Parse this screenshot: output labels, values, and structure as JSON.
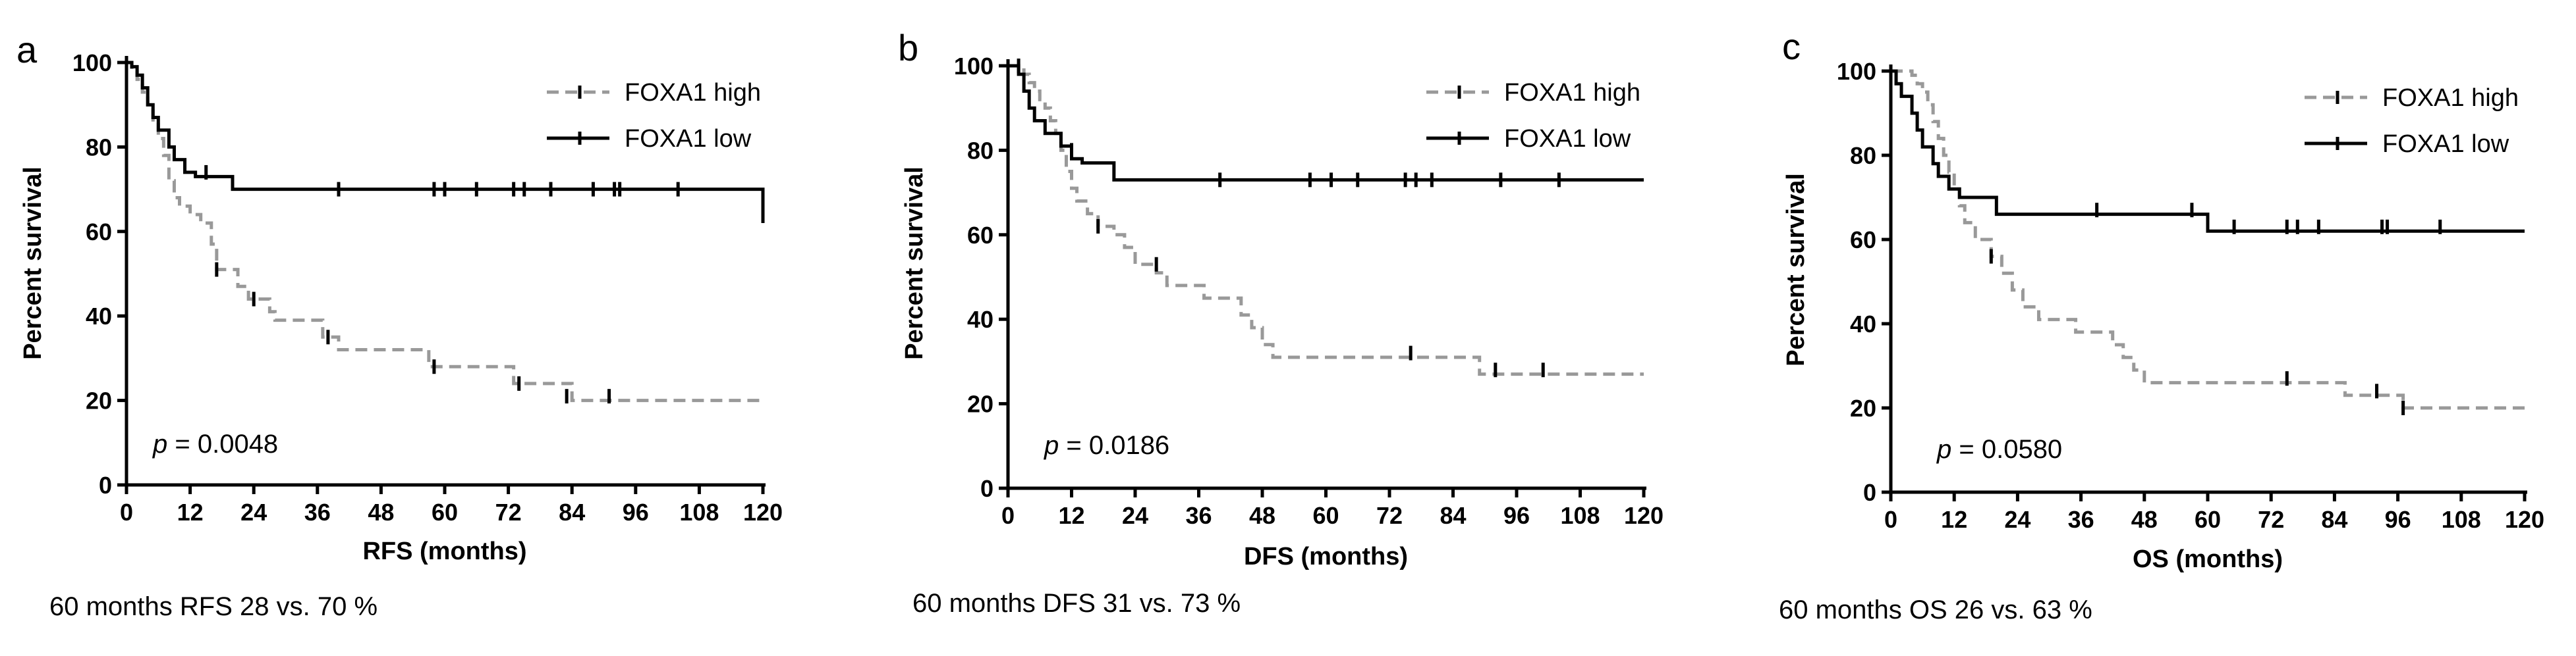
{
  "chart_data": [
    {
      "type": "line",
      "panel_letter": "a",
      "title": "",
      "xlabel": "RFS (months)",
      "ylabel": "Percent survival",
      "xlim": [
        0,
        120
      ],
      "ylim": [
        0,
        100
      ],
      "xticks": [
        "0",
        "12",
        "24",
        "36",
        "48",
        "60",
        "72",
        "84",
        "96",
        "108",
        "120"
      ],
      "yticks": [
        "0",
        "20",
        "40",
        "60",
        "80",
        "100"
      ],
      "pvalue_prefix": "p",
      "pvalue_text": " = 0.0048",
      "caption": "60 months RFS 28 vs. 70 %",
      "series": [
        {
          "name": "FOXA1 high",
          "style": "dashed",
          "color": "#999999",
          "points": [
            [
              0,
              100
            ],
            [
              1,
              98
            ],
            [
              2,
              96
            ],
            [
              3,
              93
            ],
            [
              4,
              90
            ],
            [
              5,
              86
            ],
            [
              6,
              82
            ],
            [
              7,
              78
            ],
            [
              8,
              72
            ],
            [
              9,
              68
            ],
            [
              10,
              66
            ],
            [
              12,
              64
            ],
            [
              14,
              62
            ],
            [
              16,
              57
            ],
            [
              17,
              51
            ],
            [
              21,
              47
            ],
            [
              23,
              44
            ],
            [
              27,
              41
            ],
            [
              28,
              39
            ],
            [
              35,
              39
            ],
            [
              37,
              35
            ],
            [
              40,
              32
            ],
            [
              57,
              28
            ],
            [
              73,
              24
            ],
            [
              84,
              20
            ],
            [
              91,
              20
            ],
            [
              120,
              20
            ]
          ],
          "censors": [
            [
              17,
              51
            ],
            [
              24,
              44
            ],
            [
              38,
              35
            ],
            [
              58,
              28
            ],
            [
              74,
              24
            ],
            [
              83,
              21
            ],
            [
              91,
              21
            ]
          ]
        },
        {
          "name": "FOXA1 low",
          "style": "solid",
          "color": "#000000",
          "points": [
            [
              0,
              100
            ],
            [
              1,
              99
            ],
            [
              2,
              97
            ],
            [
              3,
              94
            ],
            [
              4,
              90
            ],
            [
              5,
              87
            ],
            [
              6,
              84
            ],
            [
              8,
              80
            ],
            [
              9,
              77
            ],
            [
              11,
              74
            ],
            [
              13,
              73
            ],
            [
              20,
              70
            ],
            [
              120,
              70
            ],
            [
              120,
              62
            ]
          ],
          "censors": [
            [
              15,
              74
            ],
            [
              40,
              70
            ],
            [
              58,
              70
            ],
            [
              60,
              70
            ],
            [
              66,
              70
            ],
            [
              73,
              70
            ],
            [
              75,
              70
            ],
            [
              80,
              70
            ],
            [
              88,
              70
            ],
            [
              92,
              70
            ],
            [
              93,
              70
            ],
            [
              104,
              70
            ]
          ]
        }
      ]
    },
    {
      "type": "line",
      "panel_letter": "b",
      "title": "",
      "xlabel": "DFS (months)",
      "ylabel": "Percent survival",
      "xlim": [
        0,
        120
      ],
      "ylim": [
        0,
        100
      ],
      "xticks": [
        "0",
        "12",
        "24",
        "36",
        "48",
        "60",
        "72",
        "84",
        "96",
        "108",
        "120"
      ],
      "yticks": [
        "0",
        "20",
        "40",
        "60",
        "80",
        "100"
      ],
      "pvalue_prefix": "p",
      "pvalue_text": " = 0.0186",
      "caption": "60 months DFS 31 vs. 73 %",
      "series": [
        {
          "name": "FOXA1 high",
          "style": "dashed",
          "color": "#999999",
          "points": [
            [
              0,
              100
            ],
            [
              3,
              98
            ],
            [
              4,
              96
            ],
            [
              5,
              94
            ],
            [
              6,
              92
            ],
            [
              7,
              90
            ],
            [
              8,
              87
            ],
            [
              9,
              84
            ],
            [
              10,
              80
            ],
            [
              11,
              75
            ],
            [
              12,
              71
            ],
            [
              13,
              68
            ],
            [
              15,
              65
            ],
            [
              17,
              62
            ],
            [
              20,
              60
            ],
            [
              22,
              57
            ],
            [
              24,
              53
            ],
            [
              28,
              51
            ],
            [
              30,
              48
            ],
            [
              36,
              48
            ],
            [
              37,
              45
            ],
            [
              44,
              41
            ],
            [
              46,
              38
            ],
            [
              48,
              34
            ],
            [
              50,
              31
            ],
            [
              88,
              31
            ],
            [
              89,
              27
            ],
            [
              120,
              27
            ]
          ],
          "censors": [
            [
              17,
              62
            ],
            [
              28,
              53
            ],
            [
              76,
              32
            ],
            [
              92,
              28
            ],
            [
              101,
              28
            ]
          ]
        },
        {
          "name": "FOXA1 low",
          "style": "solid",
          "color": "#000000",
          "points": [
            [
              0,
              100
            ],
            [
              2,
              98
            ],
            [
              3,
              94
            ],
            [
              4,
              90
            ],
            [
              5,
              87
            ],
            [
              7,
              84
            ],
            [
              10,
              81
            ],
            [
              12,
              78
            ],
            [
              14,
              77
            ],
            [
              20,
              73
            ],
            [
              120,
              73
            ]
          ],
          "censors": [
            [
              2,
              100
            ],
            [
              12,
              80
            ],
            [
              40,
              73
            ],
            [
              57,
              73
            ],
            [
              61,
              73
            ],
            [
              66,
              73
            ],
            [
              75,
              73
            ],
            [
              77,
              73
            ],
            [
              80,
              73
            ],
            [
              93,
              73
            ],
            [
              104,
              73
            ]
          ]
        }
      ]
    },
    {
      "type": "line",
      "panel_letter": "c",
      "title": "",
      "xlabel": "OS (months)",
      "ylabel": "Percent survival",
      "xlim": [
        0,
        120
      ],
      "ylim": [
        0,
        100
      ],
      "xticks": [
        "0",
        "12",
        "24",
        "36",
        "48",
        "60",
        "72",
        "84",
        "96",
        "108",
        "120"
      ],
      "yticks": [
        "0",
        "20",
        "40",
        "60",
        "80",
        "100"
      ],
      "pvalue_prefix": "p",
      "pvalue_text": " = 0.0580",
      "caption": "60 months OS 26 vs. 63 %",
      "series": [
        {
          "name": "FOXA1 high",
          "style": "dashed",
          "color": "#999999",
          "points": [
            [
              0,
              100
            ],
            [
              4,
              99
            ],
            [
              5,
              97
            ],
            [
              6,
              95
            ],
            [
              7,
              92
            ],
            [
              8,
              88
            ],
            [
              9,
              84
            ],
            [
              10,
              80
            ],
            [
              11,
              76
            ],
            [
              12,
              72
            ],
            [
              13,
              68
            ],
            [
              14,
              64
            ],
            [
              16,
              60
            ],
            [
              19,
              56
            ],
            [
              21,
              52
            ],
            [
              23,
              48
            ],
            [
              25,
              44
            ],
            [
              28,
              41
            ],
            [
              34,
              41
            ],
            [
              35,
              38
            ],
            [
              42,
              35
            ],
            [
              44,
              32
            ],
            [
              46,
              29
            ],
            [
              48,
              26
            ],
            [
              84,
              26
            ],
            [
              86,
              23
            ],
            [
              97,
              20
            ],
            [
              120,
              19
            ]
          ],
          "censors": [
            [
              19,
              56
            ],
            [
              75,
              27
            ],
            [
              92,
              24
            ],
            [
              97,
              20
            ]
          ]
        },
        {
          "name": "FOXA1 low",
          "style": "solid",
          "color": "#000000",
          "points": [
            [
              0,
              100
            ],
            [
              1,
              97
            ],
            [
              2,
              94
            ],
            [
              4,
              90
            ],
            [
              5,
              86
            ],
            [
              6,
              82
            ],
            [
              8,
              78
            ],
            [
              9,
              75
            ],
            [
              11,
              72
            ],
            [
              13,
              70
            ],
            [
              20,
              66
            ],
            [
              58,
              66
            ],
            [
              60,
              62
            ],
            [
              120,
              62
            ]
          ],
          "censors": [
            [
              39,
              67
            ],
            [
              57,
              67
            ],
            [
              65,
              63
            ],
            [
              75,
              63
            ],
            [
              77,
              63
            ],
            [
              81,
              63
            ],
            [
              93,
              63
            ],
            [
              94,
              63
            ],
            [
              104,
              63
            ]
          ]
        }
      ]
    }
  ]
}
